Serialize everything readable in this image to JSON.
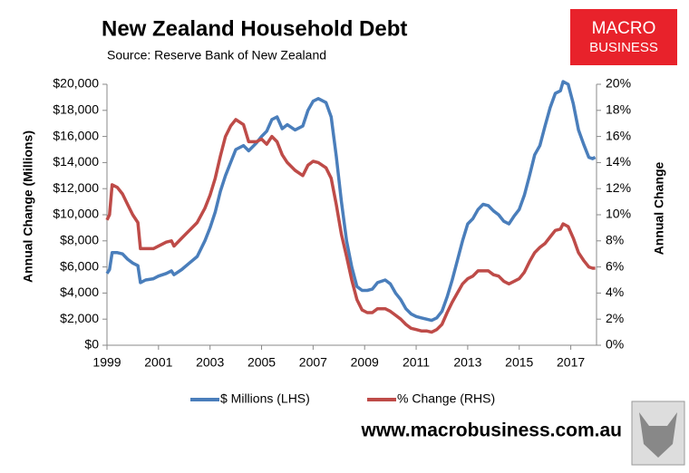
{
  "chart_data": {
    "type": "line",
    "title": "New Zealand Household Debt",
    "subtitle": "Source: Reserve Bank of New Zealand",
    "y_label": "Annual Change (Millions)",
    "y2_label": "Annual Change",
    "x": [
      1999.0,
      1999.1,
      1999.2,
      1999.4,
      1999.6,
      1999.8,
      2000.0,
      2000.2,
      2000.3,
      2000.5,
      2000.8,
      2001.0,
      2001.3,
      2001.5,
      2001.6,
      2001.9,
      2002.2,
      2002.5,
      2002.8,
      2003.0,
      2003.2,
      2003.4,
      2003.6,
      2003.8,
      2004.0,
      2004.3,
      2004.5,
      2004.8,
      2005.0,
      2005.2,
      2005.4,
      2005.6,
      2005.8,
      2006.0,
      2006.3,
      2006.6,
      2006.8,
      2007.0,
      2007.2,
      2007.5,
      2007.7,
      2007.9,
      2008.1,
      2008.3,
      2008.5,
      2008.7,
      2008.9,
      2009.1,
      2009.3,
      2009.5,
      2009.8,
      2010.0,
      2010.2,
      2010.4,
      2010.6,
      2010.8,
      2011.0,
      2011.2,
      2011.4,
      2011.6,
      2011.8,
      2012.0,
      2012.2,
      2012.4,
      2012.6,
      2012.8,
      2013.0,
      2013.2,
      2013.4,
      2013.6,
      2013.8,
      2014.0,
      2014.2,
      2014.4,
      2014.6,
      2014.8,
      2015.0,
      2015.2,
      2015.4,
      2015.6,
      2015.8,
      2016.0,
      2016.2,
      2016.4,
      2016.6,
      2016.7,
      2016.9,
      2017.1,
      2017.3,
      2017.5,
      2017.7,
      2017.85,
      2017.95
    ],
    "series": [
      {
        "name": "$ Millions (LHS)",
        "color": "#4a7ebb",
        "axis": "y",
        "values": [
          5500,
          5800,
          7100,
          7100,
          7000,
          6600,
          6300,
          6100,
          4800,
          5000,
          5100,
          5300,
          5500,
          5700,
          5400,
          5800,
          6300,
          6800,
          8000,
          9000,
          10200,
          11800,
          13000,
          14000,
          15000,
          15300,
          14900,
          15500,
          16000,
          16400,
          17300,
          17500,
          16600,
          16900,
          16500,
          16800,
          18000,
          18700,
          18900,
          18600,
          17500,
          14500,
          11000,
          8000,
          6000,
          4500,
          4200,
          4200,
          4300,
          4800,
          5000,
          4700,
          4000,
          3500,
          2800,
          2400,
          2200,
          2100,
          2000,
          1900,
          2100,
          2600,
          3700,
          5000,
          6500,
          8000,
          9300,
          9700,
          10400,
          10800,
          10700,
          10300,
          10000,
          9500,
          9300,
          9900,
          10400,
          11500,
          13000,
          14600,
          15300,
          16800,
          18200,
          19300,
          19500,
          20200,
          20000,
          18500,
          16500,
          15400,
          14400,
          14300,
          14400
        ]
      },
      {
        "name": "% Change (RHS)",
        "color": "#be4b48",
        "axis": "y2",
        "values": [
          9.6,
          10.0,
          12.3,
          12.1,
          11.6,
          10.8,
          10.0,
          9.4,
          7.4,
          7.4,
          7.4,
          7.6,
          7.9,
          8.0,
          7.6,
          8.2,
          8.8,
          9.4,
          10.5,
          11.5,
          12.8,
          14.5,
          16.0,
          16.8,
          17.3,
          16.9,
          15.6,
          15.6,
          15.8,
          15.4,
          16.0,
          15.6,
          14.6,
          14.0,
          13.4,
          13.0,
          13.8,
          14.1,
          14.0,
          13.6,
          12.8,
          10.8,
          8.5,
          6.8,
          5.0,
          3.5,
          2.7,
          2.5,
          2.5,
          2.8,
          2.8,
          2.6,
          2.3,
          2.0,
          1.6,
          1.3,
          1.2,
          1.1,
          1.1,
          1.0,
          1.2,
          1.6,
          2.5,
          3.3,
          4.0,
          4.7,
          5.1,
          5.3,
          5.7,
          5.7,
          5.7,
          5.4,
          5.3,
          4.9,
          4.7,
          4.9,
          5.1,
          5.6,
          6.4,
          7.1,
          7.5,
          7.8,
          8.3,
          8.8,
          8.9,
          9.3,
          9.1,
          8.2,
          7.1,
          6.5,
          6.0,
          5.9,
          5.9
        ]
      }
    ],
    "xlim": [
      1999,
      2018
    ],
    "xticks": [
      1999,
      2001,
      2003,
      2005,
      2007,
      2009,
      2011,
      2013,
      2015,
      2017
    ],
    "ylim": [
      0,
      20000
    ],
    "yticks": [
      {
        "value": 0,
        "label": "$0"
      },
      {
        "value": 2000,
        "label": "$2,000"
      },
      {
        "value": 4000,
        "label": "$4,000"
      },
      {
        "value": 6000,
        "label": "$6,000"
      },
      {
        "value": 8000,
        "label": "$8,000"
      },
      {
        "value": 10000,
        "label": "$10,000"
      },
      {
        "value": 12000,
        "label": "$12,000"
      },
      {
        "value": 14000,
        "label": "$14,000"
      },
      {
        "value": 16000,
        "label": "$16,000"
      },
      {
        "value": 18000,
        "label": "$18,000"
      },
      {
        "value": 20000,
        "label": "$20,000"
      }
    ],
    "y2lim": [
      0,
      20
    ],
    "y2ticks": [
      {
        "value": 0,
        "label": "0%"
      },
      {
        "value": 2,
        "label": "2%"
      },
      {
        "value": 4,
        "label": "4%"
      },
      {
        "value": 6,
        "label": "6%"
      },
      {
        "value": 8,
        "label": "8%"
      },
      {
        "value": 10,
        "label": "10%"
      },
      {
        "value": 12,
        "label": "12%"
      },
      {
        "value": 14,
        "label": "14%"
      },
      {
        "value": 16,
        "label": "16%"
      },
      {
        "value": 18,
        "label": "18%"
      },
      {
        "value": 20,
        "label": "20%"
      }
    ],
    "grid": false,
    "legend": "bottom"
  },
  "branding": {
    "logo_lines": [
      "MACRO",
      "BUSINESS"
    ],
    "url": "www.macrobusiness.com.au"
  }
}
